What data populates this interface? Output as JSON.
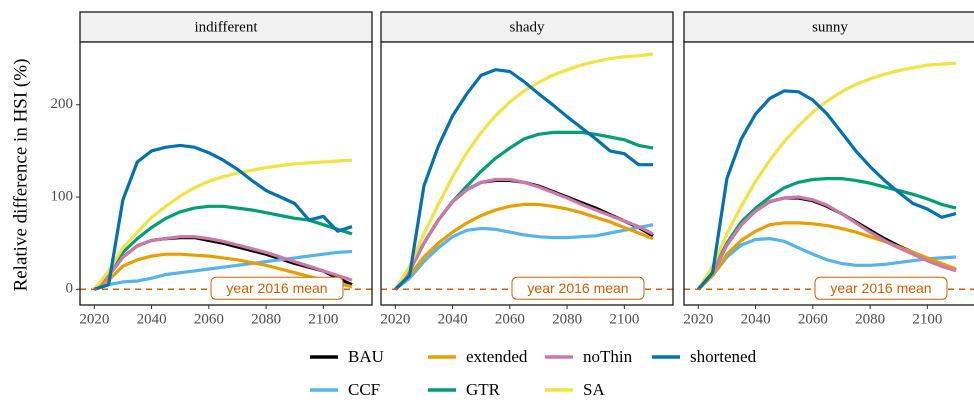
{
  "chart_data": [
    {
      "type": "line",
      "title": "indifferent",
      "y_label": "Relative difference in HSI (%)",
      "annotation": "year 2016 mean",
      "hline": 0,
      "hline_color": "#D55E00",
      "x": [
        2020,
        2025,
        2030,
        2035,
        2040,
        2045,
        2050,
        2055,
        2060,
        2065,
        2070,
        2075,
        2080,
        2085,
        2090,
        2095,
        2100,
        2105,
        2110
      ],
      "xlim": [
        2015,
        2117
      ],
      "xticks": [
        2020,
        2040,
        2060,
        2080,
        2100
      ],
      "ylim": [
        -17,
        268
      ],
      "yticks": [
        0,
        100,
        200
      ],
      "grid": false,
      "series": [
        {
          "name": "BAU",
          "color": "#000000",
          "values": [
            0,
            15,
            35,
            47,
            53,
            55,
            56,
            56,
            53,
            50,
            46,
            42,
            38,
            33,
            28,
            24,
            20,
            12,
            5
          ]
        },
        {
          "name": "CCF",
          "color": "#56B4E9",
          "values": [
            0,
            5,
            8,
            9,
            12,
            16,
            18,
            20,
            22,
            24,
            26,
            28,
            30,
            32,
            34,
            36,
            38,
            40,
            41
          ]
        },
        {
          "name": "extended",
          "color": "#E69F00",
          "values": [
            0,
            10,
            25,
            32,
            36,
            38,
            38,
            37,
            36,
            34,
            32,
            29,
            26,
            22,
            18,
            14,
            10,
            6,
            3
          ]
        },
        {
          "name": "GTR",
          "color": "#009E73",
          "values": [
            0,
            18,
            40,
            55,
            67,
            77,
            84,
            88,
            90,
            90,
            88,
            86,
            83,
            80,
            77,
            75,
            70,
            65,
            60
          ]
        },
        {
          "name": "noThin",
          "color": "#CC79A7",
          "values": [
            0,
            15,
            35,
            47,
            53,
            55,
            57,
            57,
            55,
            52,
            48,
            44,
            40,
            35,
            30,
            25,
            20,
            15,
            10
          ]
        },
        {
          "name": "SA",
          "color": "#F0E442",
          "values": [
            0,
            20,
            45,
            62,
            78,
            90,
            101,
            110,
            117,
            122,
            126,
            129,
            132,
            134,
            136,
            137,
            138,
            139,
            140
          ]
        },
        {
          "name": "shortened",
          "color": "#0072B2",
          "values": [
            0,
            5,
            97,
            138,
            150,
            154,
            156,
            154,
            148,
            140,
            130,
            118,
            107,
            100,
            93,
            75,
            79,
            63,
            68
          ]
        }
      ]
    },
    {
      "type": "line",
      "title": "shady",
      "annotation": "year 2016 mean",
      "hline": 0,
      "hline_color": "#D55E00",
      "x": [
        2020,
        2025,
        2030,
        2035,
        2040,
        2045,
        2050,
        2055,
        2060,
        2065,
        2070,
        2075,
        2080,
        2085,
        2090,
        2095,
        2100,
        2105,
        2110
      ],
      "xlim": [
        2015,
        2117
      ],
      "xticks": [
        2020,
        2040,
        2060,
        2080,
        2100
      ],
      "ylim": [
        -17,
        268
      ],
      "yticks": [
        0,
        100,
        200
      ],
      "grid": false,
      "series": [
        {
          "name": "BAU",
          "color": "#000000",
          "values": [
            0,
            20,
            50,
            75,
            95,
            108,
            116,
            118,
            118,
            116,
            112,
            106,
            100,
            94,
            88,
            81,
            74,
            67,
            58
          ]
        },
        {
          "name": "CCF",
          "color": "#56B4E9",
          "values": [
            0,
            12,
            30,
            45,
            57,
            64,
            66,
            65,
            62,
            59,
            57,
            56,
            56,
            57,
            58,
            61,
            64,
            67,
            70
          ]
        },
        {
          "name": "extended",
          "color": "#E69F00",
          "values": [
            0,
            15,
            35,
            50,
            62,
            72,
            80,
            86,
            90,
            92,
            92,
            90,
            87,
            83,
            78,
            73,
            67,
            61,
            55
          ]
        },
        {
          "name": "GTR",
          "color": "#009E73",
          "values": [
            0,
            20,
            50,
            75,
            95,
            112,
            128,
            142,
            153,
            163,
            168,
            170,
            170,
            170,
            168,
            165,
            162,
            156,
            153
          ]
        },
        {
          "name": "noThin",
          "color": "#CC79A7",
          "values": [
            0,
            20,
            50,
            75,
            95,
            108,
            116,
            119,
            119,
            116,
            111,
            105,
            99,
            92,
            86,
            80,
            74,
            68,
            60
          ]
        },
        {
          "name": "SA",
          "color": "#F0E442",
          "values": [
            0,
            25,
            60,
            92,
            122,
            148,
            170,
            188,
            203,
            215,
            224,
            232,
            238,
            243,
            247,
            250,
            252,
            253,
            255
          ]
        },
        {
          "name": "shortened",
          "color": "#0072B2",
          "values": [
            0,
            15,
            112,
            155,
            188,
            212,
            232,
            238,
            236,
            225,
            212,
            200,
            187,
            175,
            163,
            150,
            147,
            135,
            135
          ]
        }
      ]
    },
    {
      "type": "line",
      "title": "sunny",
      "annotation": "year 2016 mean",
      "hline": 0,
      "hline_color": "#D55E00",
      "x": [
        2020,
        2025,
        2030,
        2035,
        2040,
        2045,
        2050,
        2055,
        2060,
        2065,
        2070,
        2075,
        2080,
        2085,
        2090,
        2095,
        2100,
        2105,
        2110
      ],
      "xlim": [
        2015,
        2117
      ],
      "xticks": [
        2020,
        2040,
        2060,
        2080,
        2100
      ],
      "ylim": [
        -17,
        268
      ],
      "yticks": [
        0,
        100,
        200
      ],
      "grid": false,
      "series": [
        {
          "name": "BAU",
          "color": "#000000",
          "values": [
            0,
            18,
            48,
            70,
            85,
            95,
            99,
            99,
            96,
            90,
            82,
            73,
            64,
            55,
            47,
            40,
            33,
            26,
            21
          ]
        },
        {
          "name": "CCF",
          "color": "#56B4E9",
          "values": [
            0,
            15,
            35,
            48,
            54,
            55,
            52,
            45,
            38,
            32,
            28,
            26,
            26,
            27,
            29,
            31,
            33,
            34,
            35
          ]
        },
        {
          "name": "extended",
          "color": "#E69F00",
          "values": [
            0,
            15,
            38,
            53,
            63,
            70,
            72,
            72,
            71,
            69,
            66,
            62,
            57,
            52,
            46,
            40,
            34,
            28,
            22
          ]
        },
        {
          "name": "GTR",
          "color": "#009E73",
          "values": [
            0,
            20,
            50,
            73,
            88,
            100,
            110,
            116,
            119,
            120,
            120,
            118,
            115,
            111,
            107,
            103,
            98,
            92,
            88
          ]
        },
        {
          "name": "noThin",
          "color": "#CC79A7",
          "values": [
            0,
            18,
            48,
            70,
            85,
            95,
            99,
            100,
            97,
            91,
            82,
            72,
            62,
            53,
            45,
            38,
            31,
            25,
            20
          ]
        },
        {
          "name": "SA",
          "color": "#F0E442",
          "values": [
            0,
            25,
            60,
            90,
            117,
            140,
            160,
            177,
            192,
            204,
            214,
            222,
            228,
            233,
            237,
            240,
            243,
            244,
            245
          ]
        },
        {
          "name": "shortened",
          "color": "#0072B2",
          "values": [
            0,
            18,
            120,
            163,
            190,
            207,
            215,
            214,
            205,
            190,
            170,
            150,
            133,
            118,
            105,
            93,
            87,
            78,
            82
          ]
        }
      ]
    }
  ]
}
